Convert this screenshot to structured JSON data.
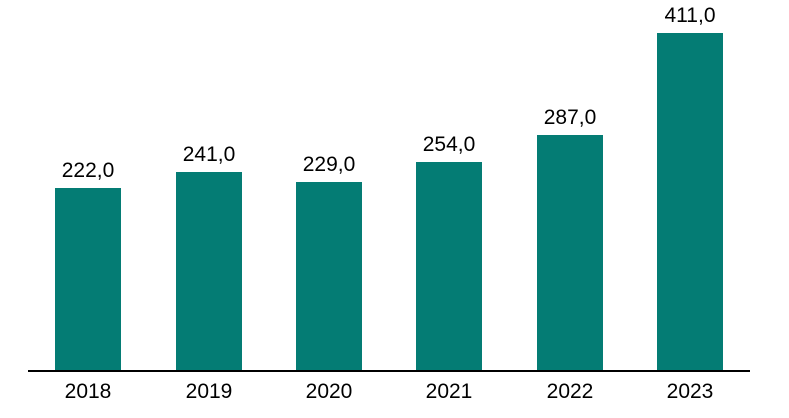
{
  "chart_data": {
    "type": "bar",
    "title": "",
    "xlabel": "",
    "ylabel": "",
    "categories": [
      "2018",
      "2019",
      "2020",
      "2021",
      "2022",
      "2023"
    ],
    "values": [
      222.0,
      241.0,
      229.0,
      254.0,
      287.0,
      411.0
    ],
    "value_labels": [
      "222,0",
      "241,0",
      "229,0",
      "254,0",
      "287,0",
      "411,0"
    ],
    "decimal_separator": ",",
    "ylim": [
      0,
      450
    ],
    "grid": false,
    "legend": false,
    "y_axis_visible": false,
    "x_axis_visible": true,
    "colors": {
      "bar": "#047c74",
      "axis": "#000000",
      "label": "#000000",
      "background": "#ffffff"
    }
  }
}
